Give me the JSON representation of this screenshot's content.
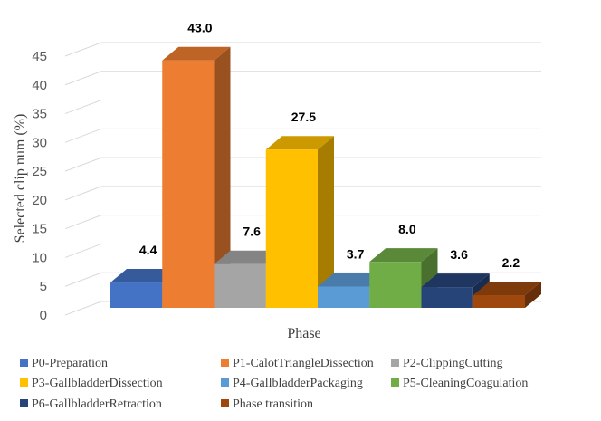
{
  "chart_data": {
    "type": "bar",
    "categories": [
      "P0-Preparation",
      "P1-CalotTriangleDissection",
      "P2-ClippingCutting",
      "P3-GallbladderDissection",
      "P4-GallbladderPackaging",
      "P5-CleaningCoagulation",
      "P6-GallbladderRetraction",
      "Phase transition"
    ],
    "values": [
      4.4,
      43.0,
      7.6,
      27.5,
      3.7,
      8.0,
      3.6,
      2.2
    ],
    "value_labels": [
      "4.4",
      "43.0",
      "7.6",
      "27.5",
      "3.7",
      "8.0",
      "3.6",
      "2.2"
    ],
    "colors": [
      "#4472C4",
      "#ED7D31",
      "#A5A5A5",
      "#FFC000",
      "#5B9BD5",
      "#70AD47",
      "#264478",
      "#9E480E"
    ],
    "xlabel": "Phase",
    "ylabel": "Selected clip num (%)",
    "ylim": [
      0,
      45
    ],
    "yticks": [
      "0",
      "5",
      "10",
      "15",
      "20",
      "25",
      "30",
      "35",
      "40",
      "45"
    ],
    "grid": true,
    "style": "3d-column",
    "legend_position": "bottom"
  }
}
